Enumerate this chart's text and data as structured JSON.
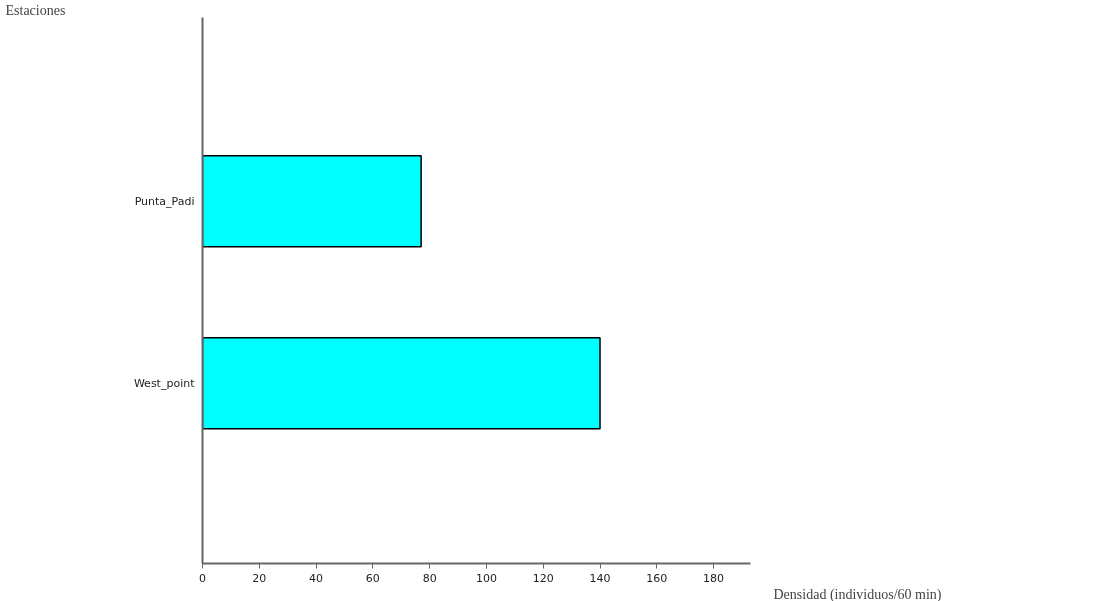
{
  "chart_data": {
    "type": "bar",
    "orientation": "horizontal",
    "ylabel": "Estaciones",
    "xlabel": "Densidad (individuos/60 min)",
    "categories": [
      "Punta_Padi",
      "West_point"
    ],
    "series": [
      {
        "color": "#00ffff",
        "values": [
          77,
          140
        ]
      }
    ],
    "xlim": [
      0,
      193
    ],
    "xticks": [
      0,
      20,
      40,
      60,
      80,
      100,
      120,
      140,
      160,
      180
    ],
    "grid": false
  }
}
